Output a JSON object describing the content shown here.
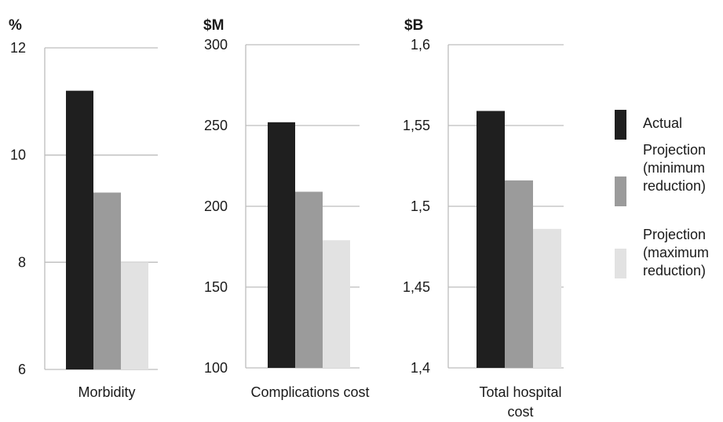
{
  "chart_data": [
    {
      "type": "bar",
      "unit_label": "%",
      "categories": [
        "Morbidity"
      ],
      "ylim": [
        6,
        12
      ],
      "yticks": [
        "6",
        "8",
        "10",
        "12"
      ],
      "series": [
        {
          "name": "Actual",
          "values": [
            11.2
          ]
        },
        {
          "name": "Projection (minimum reduction)",
          "values": [
            9.3
          ]
        },
        {
          "name": "Projection (maximum reduction)",
          "values": [
            8.0
          ]
        }
      ]
    },
    {
      "type": "bar",
      "unit_label": "$M",
      "categories": [
        "Complications cost"
      ],
      "ylim": [
        100,
        300
      ],
      "yticks": [
        "100",
        "150",
        "200",
        "250",
        "300"
      ],
      "series": [
        {
          "name": "Actual",
          "values": [
            252
          ]
        },
        {
          "name": "Projection (minimum reduction)",
          "values": [
            209
          ]
        },
        {
          "name": "Projection (maximum reduction)",
          "values": [
            179
          ]
        }
      ]
    },
    {
      "type": "bar",
      "unit_label": "$B",
      "categories": [
        "Total hospital cost"
      ],
      "ylim": [
        1.4,
        1.6
      ],
      "yticks": [
        "1,4",
        "1,45",
        "1,5",
        "1,55",
        "1,6"
      ],
      "series": [
        {
          "name": "Actual",
          "values": [
            1.559
          ]
        },
        {
          "name": "Projection (minimum reduction)",
          "values": [
            1.516
          ]
        },
        {
          "name": "Projection (maximum reduction)",
          "values": [
            1.486
          ]
        }
      ]
    }
  ],
  "legend": {
    "placement": "right",
    "items": [
      {
        "lines": [
          "Actual"
        ],
        "color": "#1f1f1f"
      },
      {
        "lines": [
          "Projection",
          "(minimum",
          "reduction)"
        ],
        "color": "#9b9b9b"
      },
      {
        "lines": [
          "Projection",
          "(maximum",
          "reduction)"
        ],
        "color": "#e2e2e2"
      }
    ]
  },
  "series_colors": [
    "#1f1f1f",
    "#9b9b9b",
    "#e2e2e2"
  ],
  "category_lines": [
    [
      "Morbidity"
    ],
    [
      "Complications cost"
    ],
    [
      "Total hospital",
      "cost"
    ]
  ]
}
